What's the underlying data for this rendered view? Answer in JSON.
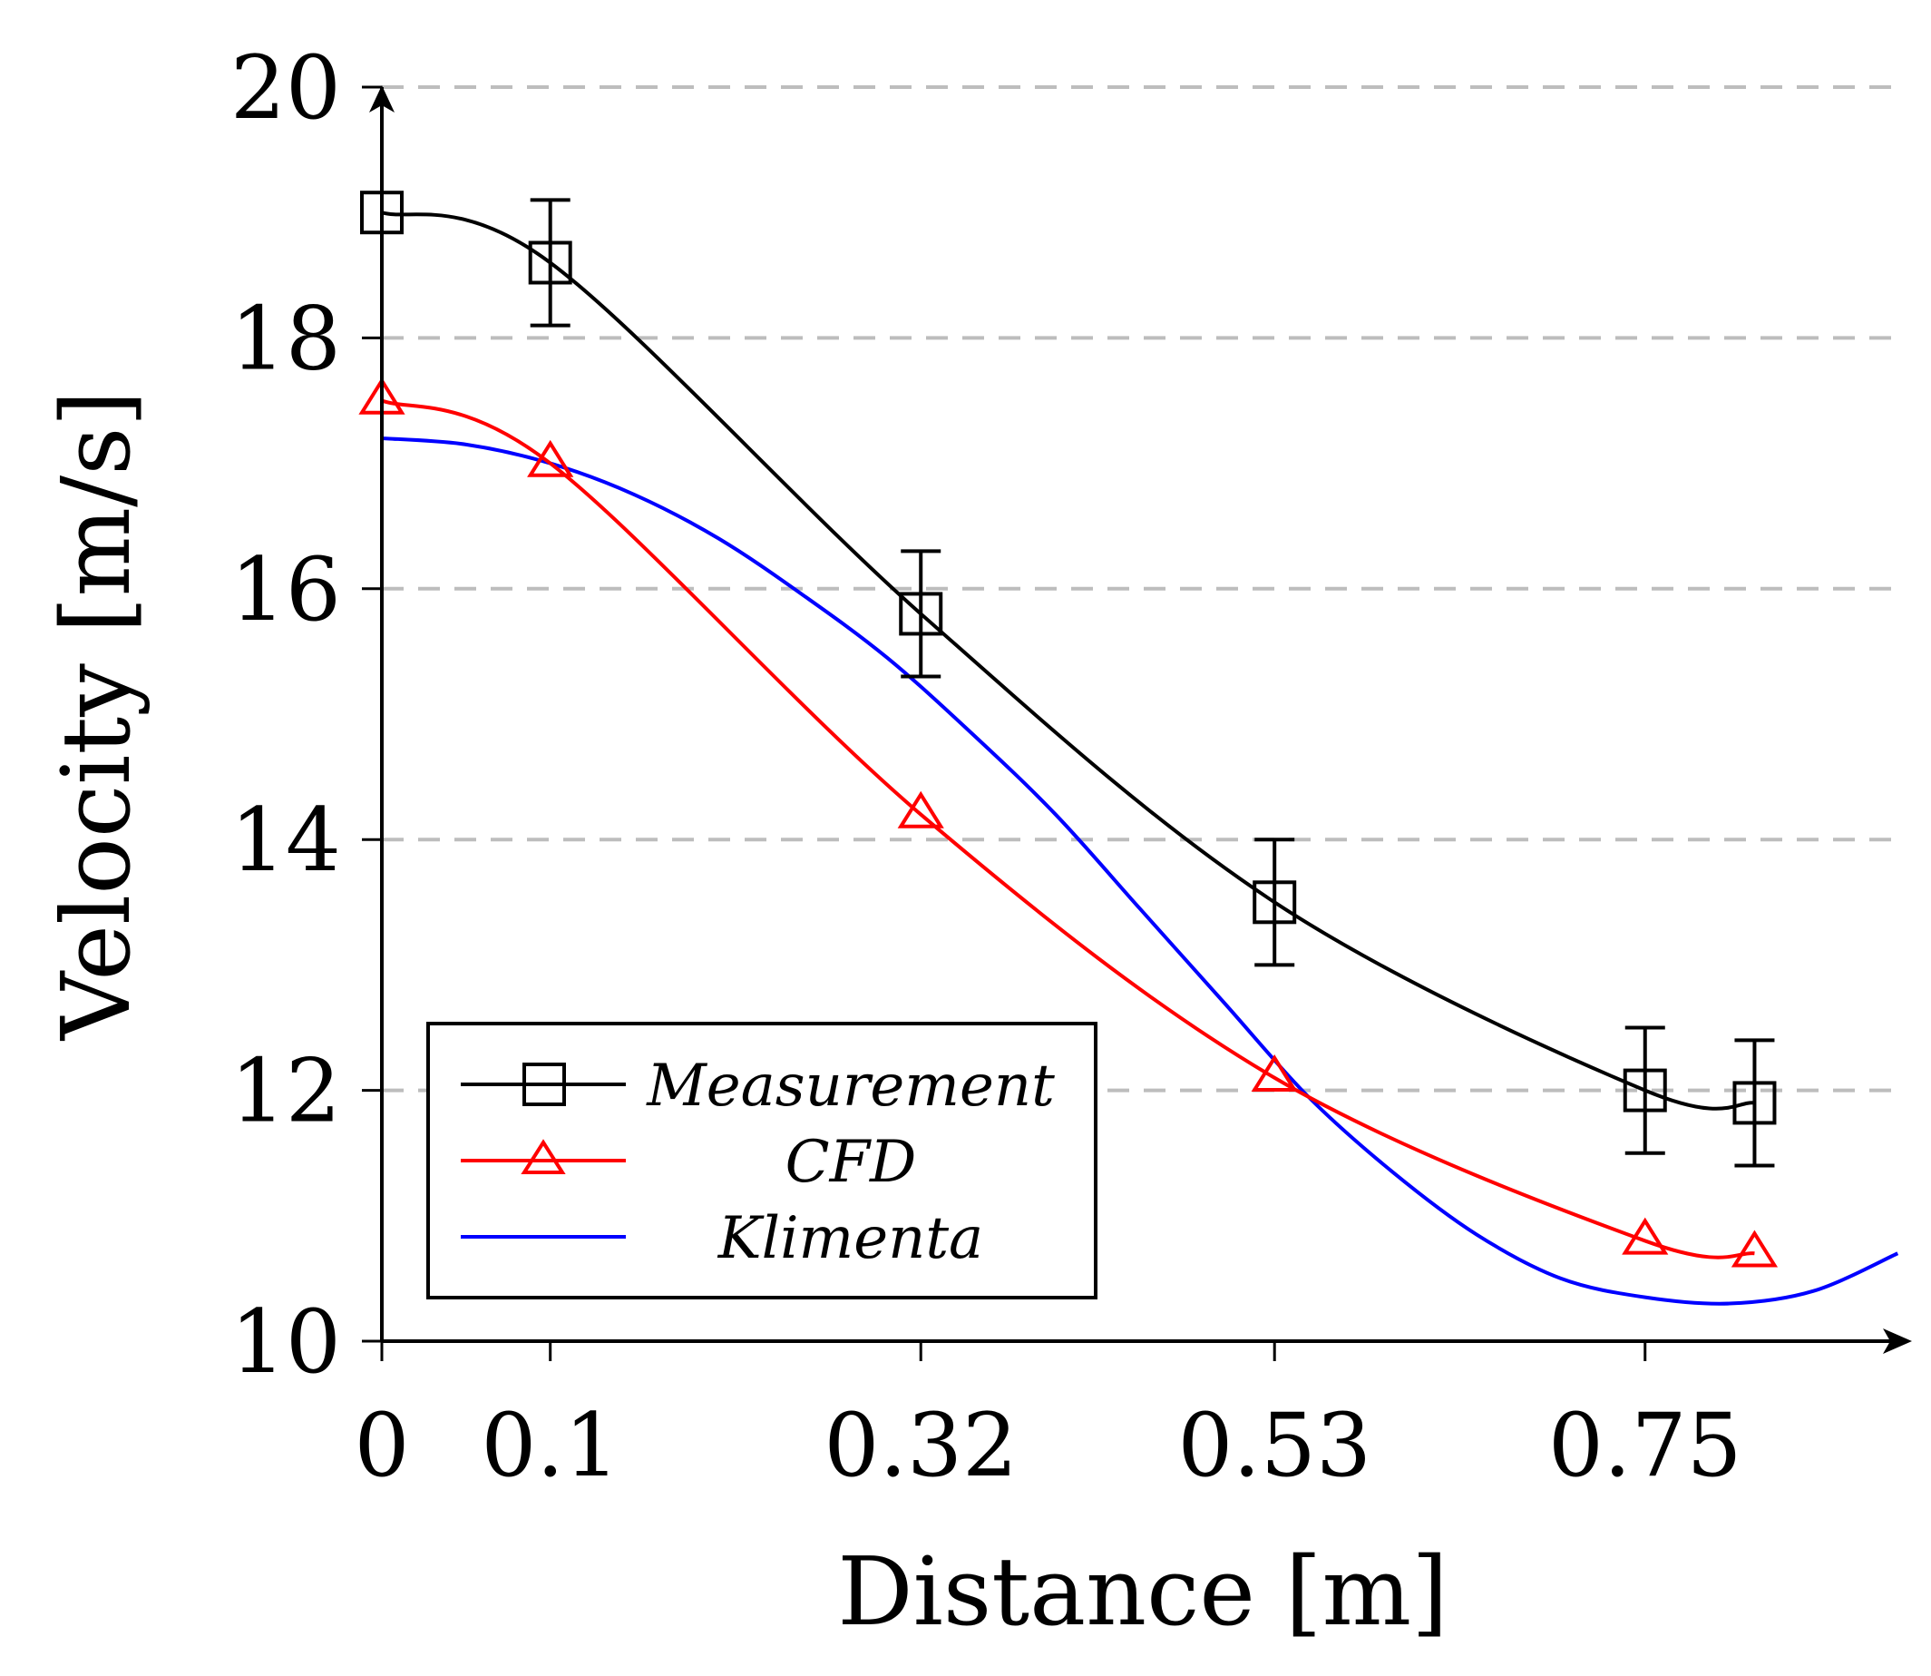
{
  "chart_data": {
    "type": "line",
    "title": "",
    "xlabel": "Distance [m]",
    "ylabel": "Velocity [m/s]",
    "xlim": [
      0,
      0.9
    ],
    "ylim": [
      10,
      20
    ],
    "x_ticks": [
      0,
      0.1,
      0.32,
      0.53,
      0.75
    ],
    "x_tick_labels": [
      "0",
      "0.1",
      "0.32",
      "0.53",
      "0.75"
    ],
    "y_ticks": [
      10,
      12,
      14,
      16,
      18,
      20
    ],
    "y_tick_labels": [
      "10",
      "12",
      "14",
      "16",
      "18",
      "20"
    ],
    "grid": "horizontal dashed",
    "legend_position": "bottom-left",
    "series": [
      {
        "name": "Measurement",
        "color": "#000000",
        "marker": "square",
        "x": [
          0,
          0.1,
          0.32,
          0.53,
          0.75,
          0.815
        ],
        "y": [
          19.0,
          18.6,
          15.8,
          13.5,
          12.0,
          11.9
        ],
        "error": [
          0,
          0.5,
          0.5,
          0.5,
          0.5,
          0.5
        ]
      },
      {
        "name": "CFD",
        "color": "#ff0000",
        "marker": "triangle",
        "x": [
          0,
          0.1,
          0.32,
          0.53,
          0.75,
          0.815
        ],
        "y": [
          17.5,
          17.0,
          14.2,
          12.1,
          10.8,
          10.7
        ]
      },
      {
        "name": "Klimenta",
        "color": "#0000ff",
        "marker": "none",
        "x": [
          0,
          0.05,
          0.1,
          0.15,
          0.2,
          0.25,
          0.3,
          0.35,
          0.4,
          0.45,
          0.5,
          0.55,
          0.6,
          0.65,
          0.7,
          0.75,
          0.8,
          0.85,
          0.9
        ],
        "y": [
          17.2,
          17.15,
          17.0,
          16.75,
          16.4,
          15.95,
          15.45,
          14.85,
          14.2,
          13.45,
          12.7,
          11.95,
          11.35,
          10.85,
          10.5,
          10.35,
          10.3,
          10.4,
          10.7
        ]
      }
    ]
  }
}
